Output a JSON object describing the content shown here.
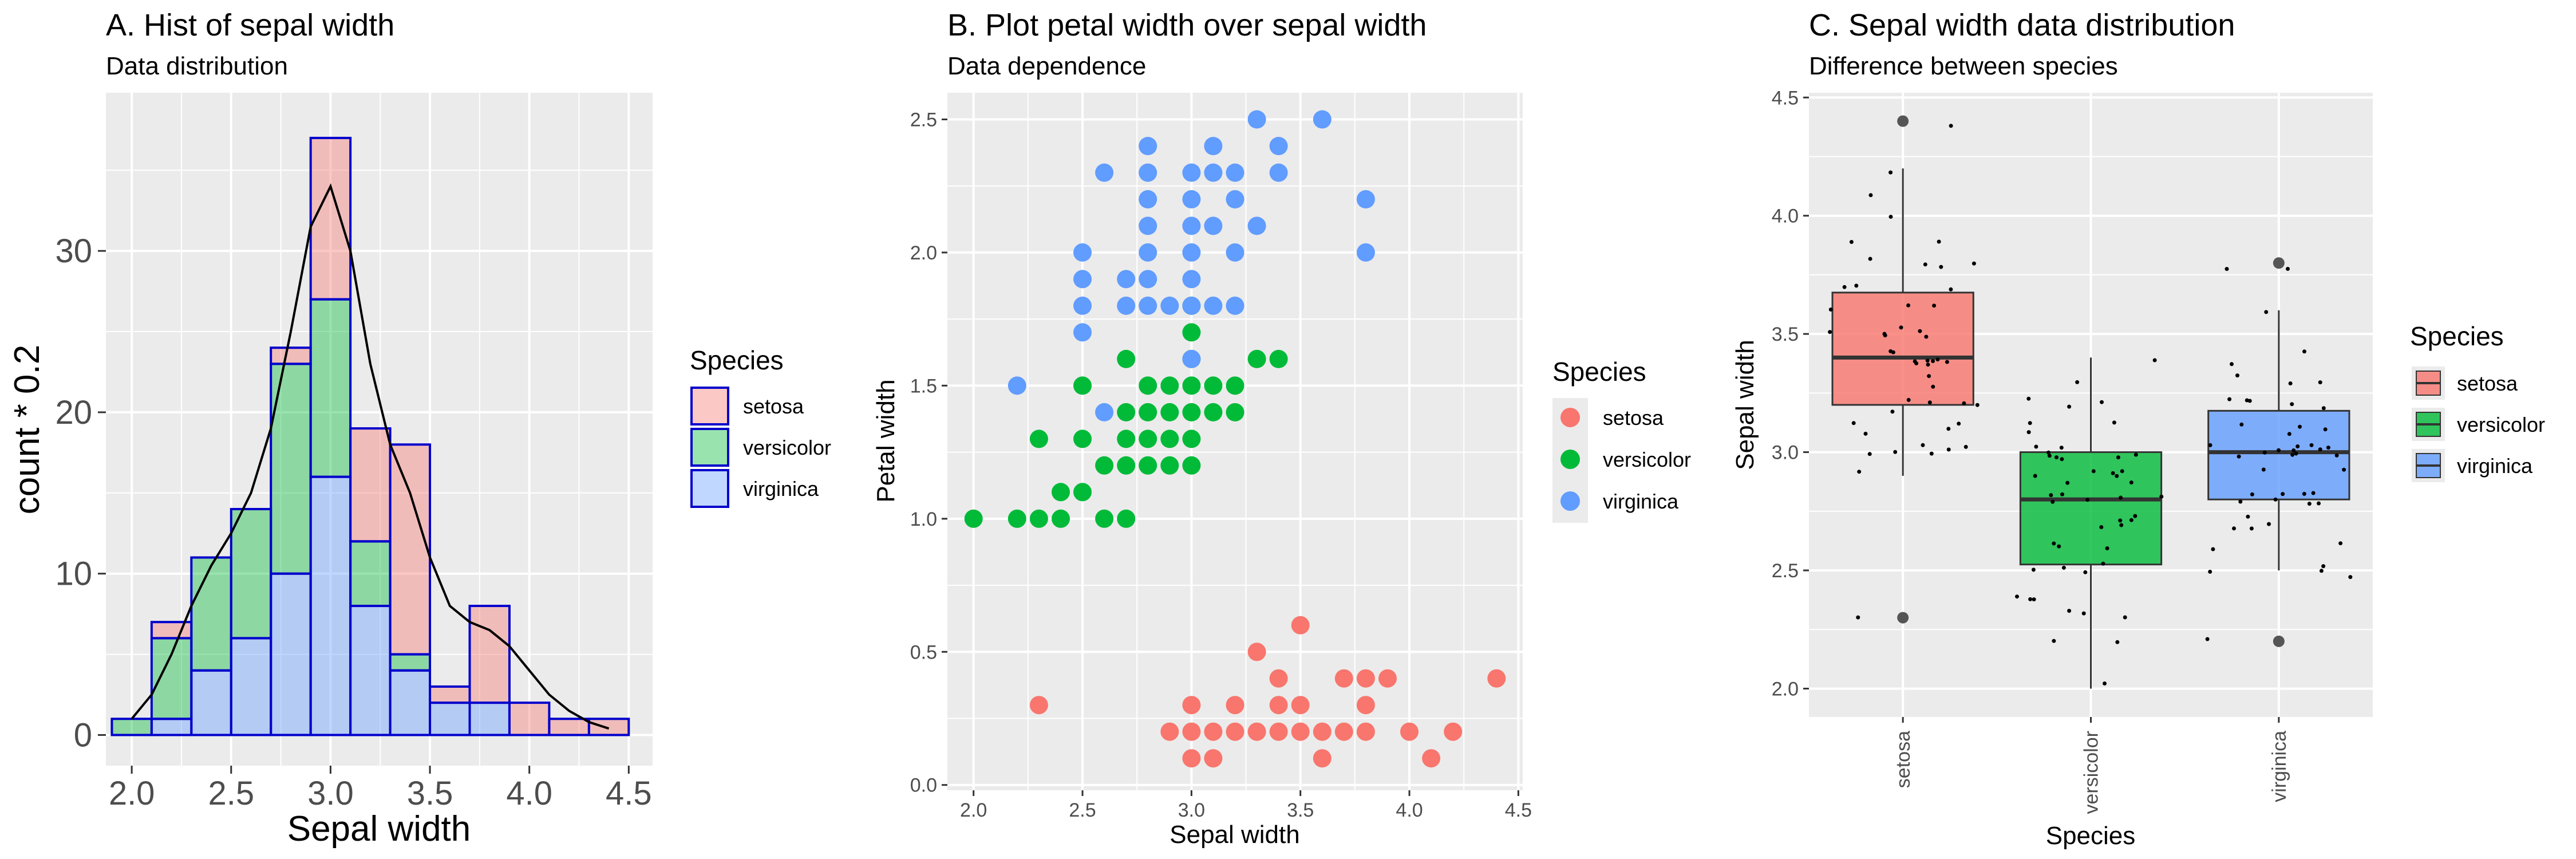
{
  "colors": {
    "setosa": "#F8766D",
    "versicolor": "#00BA38",
    "virginica": "#619CFF",
    "panel_bg": "#EBEBEB",
    "grid": "#FFFFFF",
    "hist_outline": "#0000CC",
    "density": "#000000"
  },
  "chart_data": [
    {
      "id": "A",
      "type": "bar",
      "title": "A. Hist of sepal width",
      "subtitle": "Data distribution",
      "xlabel": "Sepal width",
      "ylabel": "count * 0.2",
      "xlim": [
        1.87,
        4.62
      ],
      "ylim": [
        -1.9,
        39.8
      ],
      "xticks": [
        2.0,
        2.5,
        3.0,
        3.5,
        4.0,
        4.5
      ],
      "yticks": [
        0,
        10,
        20,
        30
      ],
      "grid": true,
      "legend": {
        "title": "Species",
        "position": "right",
        "entries": [
          "setosa",
          "versicolor",
          "virginica"
        ]
      },
      "bin_width": 0.2,
      "bin_starts": [
        1.9,
        2.1,
        2.3,
        2.5,
        2.7,
        2.9,
        3.1,
        3.3,
        3.5,
        3.7,
        3.9,
        4.1,
        4.3
      ],
      "series": [
        {
          "name": "virginica",
          "values": [
            0,
            1,
            4,
            6,
            10,
            16,
            8,
            4,
            2,
            2,
            0,
            0,
            0
          ]
        },
        {
          "name": "versicolor",
          "values": [
            1,
            5,
            7,
            8,
            13,
            11,
            4,
            1,
            0,
            0,
            0,
            0,
            0
          ]
        },
        {
          "name": "setosa",
          "values": [
            0,
            1,
            0,
            0,
            1,
            10,
            7,
            13,
            1,
            6,
            2,
            1,
            1
          ]
        }
      ],
      "density": {
        "x": [
          2.0,
          2.1,
          2.2,
          2.3,
          2.4,
          2.5,
          2.6,
          2.7,
          2.8,
          2.9,
          3.0,
          3.1,
          3.2,
          3.3,
          3.4,
          3.5,
          3.6,
          3.7,
          3.8,
          3.9,
          4.0,
          4.1,
          4.2,
          4.3,
          4.4
        ],
        "y": [
          1.0,
          2.5,
          5.0,
          8.0,
          10.5,
          12.5,
          15.0,
          19.0,
          25.0,
          31.5,
          34.0,
          30.0,
          23.0,
          18.0,
          15.0,
          11.0,
          8.0,
          7.0,
          6.5,
          5.5,
          4.0,
          2.5,
          1.5,
          0.8,
          0.4
        ]
      }
    },
    {
      "id": "B",
      "type": "scatter",
      "title": "B. Plot petal width over sepal width",
      "subtitle": "Data dependence",
      "xlabel": "Sepal width",
      "ylabel": "Petal width",
      "xlim": [
        1.88,
        4.52
      ],
      "ylim": [
        -0.02,
        2.6
      ],
      "xticks": [
        2.0,
        2.5,
        3.0,
        3.5,
        4.0,
        4.5
      ],
      "yticks": [
        0.0,
        0.5,
        1.0,
        1.5,
        2.0,
        2.5
      ],
      "grid": true,
      "legend": {
        "title": "Species",
        "position": "right",
        "entries": [
          "setosa",
          "versicolor",
          "virginica"
        ]
      },
      "series": [
        {
          "name": "setosa",
          "points": [
            [
              2.3,
              0.3
            ],
            [
              3.0,
              0.1
            ],
            [
              3.1,
              0.1
            ],
            [
              3.6,
              0.1
            ],
            [
              4.1,
              0.1
            ],
            [
              2.9,
              0.2
            ],
            [
              3.0,
              0.2
            ],
            [
              3.1,
              0.2
            ],
            [
              3.2,
              0.2
            ],
            [
              3.3,
              0.2
            ],
            [
              3.4,
              0.2
            ],
            [
              3.5,
              0.2
            ],
            [
              3.6,
              0.2
            ],
            [
              3.7,
              0.2
            ],
            [
              3.8,
              0.2
            ],
            [
              4.0,
              0.2
            ],
            [
              4.2,
              0.2
            ],
            [
              3.0,
              0.3
            ],
            [
              3.2,
              0.3
            ],
            [
              3.4,
              0.3
            ],
            [
              3.5,
              0.3
            ],
            [
              3.8,
              0.3
            ],
            [
              3.4,
              0.4
            ],
            [
              3.7,
              0.4
            ],
            [
              3.8,
              0.4
            ],
            [
              3.9,
              0.4
            ],
            [
              4.4,
              0.4
            ],
            [
              3.3,
              0.5
            ],
            [
              3.5,
              0.6
            ]
          ]
        },
        {
          "name": "versicolor",
          "points": [
            [
              2.0,
              1.0
            ],
            [
              2.2,
              1.0
            ],
            [
              2.3,
              1.0
            ],
            [
              2.4,
              1.0
            ],
            [
              2.6,
              1.0
            ],
            [
              2.7,
              1.0
            ],
            [
              2.4,
              1.1
            ],
            [
              2.5,
              1.1
            ],
            [
              2.3,
              1.3
            ],
            [
              2.5,
              1.3
            ],
            [
              2.7,
              1.3
            ],
            [
              2.8,
              1.3
            ],
            [
              2.9,
              1.3
            ],
            [
              3.0,
              1.3
            ],
            [
              2.6,
              1.2
            ],
            [
              2.7,
              1.2
            ],
            [
              2.8,
              1.2
            ],
            [
              2.9,
              1.2
            ],
            [
              3.0,
              1.2
            ],
            [
              2.7,
              1.4
            ],
            [
              2.8,
              1.4
            ],
            [
              2.9,
              1.4
            ],
            [
              3.0,
              1.4
            ],
            [
              3.1,
              1.4
            ],
            [
              3.2,
              1.4
            ],
            [
              2.5,
              1.5
            ],
            [
              2.8,
              1.5
            ],
            [
              2.9,
              1.5
            ],
            [
              3.0,
              1.5
            ],
            [
              3.1,
              1.5
            ],
            [
              3.2,
              1.5
            ],
            [
              2.7,
              1.6
            ],
            [
              3.0,
              1.6
            ],
            [
              3.3,
              1.6
            ],
            [
              3.4,
              1.6
            ],
            [
              3.0,
              1.7
            ],
            [
              3.0,
              1.8
            ]
          ]
        },
        {
          "name": "virginica",
          "points": [
            [
              2.2,
              1.5
            ],
            [
              2.6,
              1.4
            ],
            [
              3.0,
              1.6
            ],
            [
              2.5,
              1.7
            ],
            [
              2.5,
              1.8
            ],
            [
              2.7,
              1.8
            ],
            [
              2.8,
              1.8
            ],
            [
              2.9,
              1.8
            ],
            [
              3.0,
              1.8
            ],
            [
              3.1,
              1.8
            ],
            [
              3.2,
              1.8
            ],
            [
              2.5,
              1.9
            ],
            [
              2.7,
              1.9
            ],
            [
              2.8,
              1.9
            ],
            [
              3.0,
              1.9
            ],
            [
              2.5,
              2.0
            ],
            [
              2.8,
              2.0
            ],
            [
              3.0,
              2.0
            ],
            [
              3.2,
              2.0
            ],
            [
              3.8,
              2.0
            ],
            [
              2.8,
              2.1
            ],
            [
              3.0,
              2.1
            ],
            [
              3.1,
              2.1
            ],
            [
              3.3,
              2.1
            ],
            [
              2.8,
              2.2
            ],
            [
              3.0,
              2.2
            ],
            [
              3.2,
              2.2
            ],
            [
              3.8,
              2.2
            ],
            [
              2.6,
              2.3
            ],
            [
              2.8,
              2.3
            ],
            [
              3.0,
              2.3
            ],
            [
              3.1,
              2.3
            ],
            [
              3.2,
              2.3
            ],
            [
              3.4,
              2.3
            ],
            [
              2.8,
              2.4
            ],
            [
              3.1,
              2.4
            ],
            [
              3.4,
              2.4
            ],
            [
              3.3,
              2.5
            ],
            [
              3.6,
              2.5
            ]
          ]
        }
      ]
    },
    {
      "id": "C",
      "type": "box",
      "title": "C. Sepal width data distribution",
      "subtitle": "Difference between species",
      "xlabel": "Species",
      "ylabel": "Sepal width",
      "categories": [
        "setosa",
        "versicolor",
        "virginica"
      ],
      "ylim": [
        1.88,
        4.52
      ],
      "yticks": [
        2.0,
        2.5,
        3.0,
        3.5,
        4.0,
        4.5
      ],
      "grid": true,
      "legend": {
        "title": "Species",
        "position": "right",
        "entries": [
          "setosa",
          "versicolor",
          "virginica"
        ]
      },
      "boxes": [
        {
          "name": "setosa",
          "min": 2.9,
          "q1": 3.2,
          "median": 3.4,
          "q3": 3.675,
          "max": 4.2,
          "outliers": [
            4.4,
            2.3
          ]
        },
        {
          "name": "versicolor",
          "min": 2.0,
          "q1": 2.525,
          "median": 2.8,
          "q3": 3.0,
          "max": 3.4,
          "outliers": []
        },
        {
          "name": "virginica",
          "min": 2.5,
          "q1": 2.8,
          "median": 3.0,
          "q3": 3.175,
          "max": 3.6,
          "outliers": [
            3.8,
            2.2
          ]
        }
      ],
      "jitter_values": [
        [
          3.5,
          3.0,
          3.2,
          3.1,
          3.6,
          3.9,
          3.4,
          3.4,
          2.9,
          3.1,
          3.7,
          3.4,
          3.0,
          3.0,
          4.0,
          4.4,
          3.9,
          3.5,
          3.8,
          3.8,
          3.4,
          3.7,
          3.6,
          3.3,
          3.4,
          3.0,
          3.4,
          3.5,
          3.4,
          3.2,
          3.1,
          3.4,
          4.1,
          4.2,
          3.1,
          3.2,
          3.5,
          3.6,
          3.0,
          3.4,
          3.5,
          2.3,
          3.2,
          3.5,
          3.8,
          3.0,
          3.8,
          3.2,
          3.7,
          3.3
        ],
        [
          3.2,
          3.2,
          3.1,
          2.3,
          2.8,
          2.8,
          3.3,
          2.4,
          2.9,
          2.7,
          2.0,
          3.0,
          2.2,
          2.9,
          2.9,
          3.1,
          3.0,
          2.7,
          2.2,
          2.5,
          3.2,
          2.8,
          2.5,
          2.8,
          2.9,
          3.0,
          2.8,
          3.0,
          2.9,
          2.6,
          2.4,
          2.4,
          2.7,
          2.7,
          3.0,
          3.4,
          3.1,
          2.3,
          3.0,
          2.5,
          2.6,
          3.0,
          2.6,
          2.3,
          2.7,
          3.0,
          2.9,
          2.9,
          2.5,
          2.8
        ],
        [
          3.3,
          2.7,
          3.0,
          2.9,
          3.0,
          3.0,
          2.5,
          2.9,
          2.5,
          3.6,
          3.2,
          2.7,
          3.0,
          2.5,
          2.8,
          3.2,
          3.0,
          3.8,
          2.6,
          2.2,
          3.2,
          2.8,
          2.8,
          2.7,
          3.3,
          3.2,
          2.8,
          3.0,
          2.8,
          3.0,
          2.8,
          3.8,
          2.8,
          2.8,
          2.6,
          3.0,
          3.4,
          3.1,
          3.0,
          3.1,
          3.1,
          3.1,
          2.7,
          3.2,
          3.3,
          3.0,
          2.5,
          3.0,
          3.4,
          3.0
        ]
      ]
    }
  ]
}
